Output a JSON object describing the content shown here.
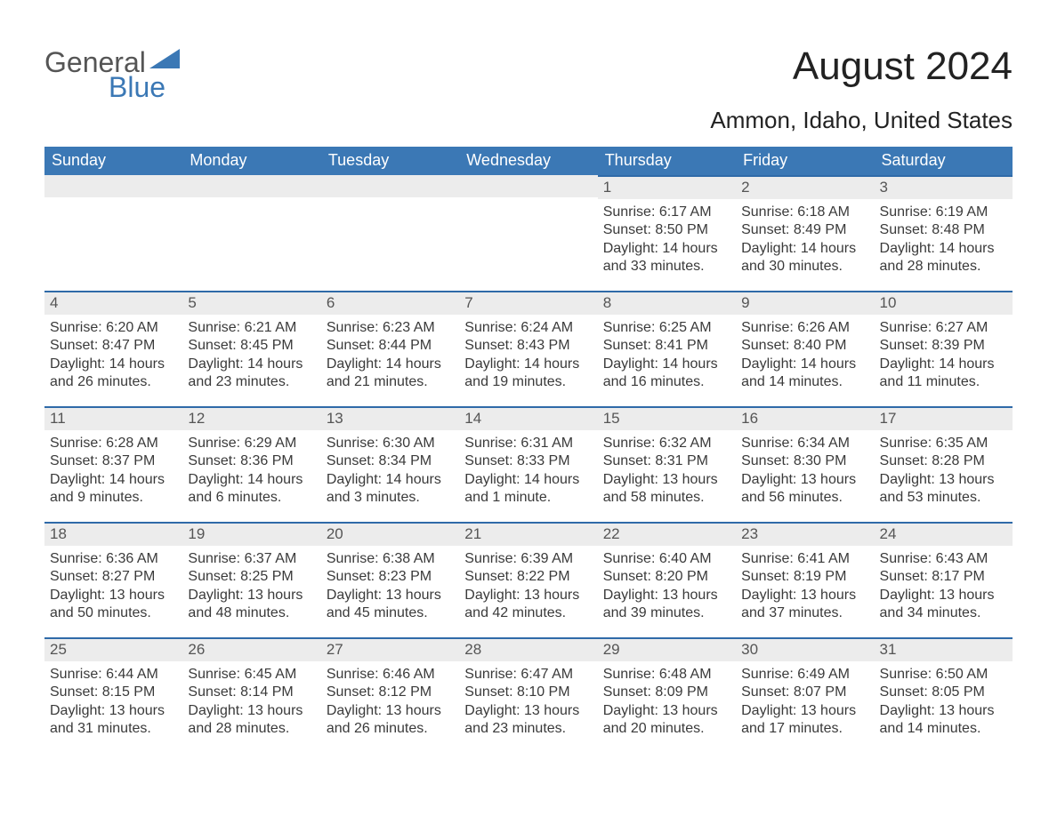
{
  "brand": {
    "line1": "General",
    "line2": "Blue"
  },
  "header": {
    "month_title": "August 2024",
    "location": "Ammon, Idaho, United States"
  },
  "colors": {
    "accent": "#3b78b5",
    "accent_line": "#2f6aa8",
    "daynum_bg": "#ececec",
    "body_text": "#3a3a3a",
    "heading_text": "#222222",
    "logo_gray": "#555555",
    "logo_blue": "#3b78b5",
    "background": "#ffffff",
    "header_text": "#ffffff"
  },
  "typography": {
    "month_title_pt": 33,
    "location_pt": 20,
    "weekday_header_pt": 14,
    "daynum_pt": 13,
    "body_pt": 12,
    "logo_pt": 24,
    "font_family": "Arial"
  },
  "calendar": {
    "type": "table",
    "weekdays": [
      "Sunday",
      "Monday",
      "Tuesday",
      "Wednesday",
      "Thursday",
      "Friday",
      "Saturday"
    ],
    "first_weekday_index": 4,
    "days": [
      {
        "n": 1,
        "sunrise": "6:17 AM",
        "sunset": "8:50 PM",
        "daylight": "14 hours and 33 minutes."
      },
      {
        "n": 2,
        "sunrise": "6:18 AM",
        "sunset": "8:49 PM",
        "daylight": "14 hours and 30 minutes."
      },
      {
        "n": 3,
        "sunrise": "6:19 AM",
        "sunset": "8:48 PM",
        "daylight": "14 hours and 28 minutes."
      },
      {
        "n": 4,
        "sunrise": "6:20 AM",
        "sunset": "8:47 PM",
        "daylight": "14 hours and 26 minutes."
      },
      {
        "n": 5,
        "sunrise": "6:21 AM",
        "sunset": "8:45 PM",
        "daylight": "14 hours and 23 minutes."
      },
      {
        "n": 6,
        "sunrise": "6:23 AM",
        "sunset": "8:44 PM",
        "daylight": "14 hours and 21 minutes."
      },
      {
        "n": 7,
        "sunrise": "6:24 AM",
        "sunset": "8:43 PM",
        "daylight": "14 hours and 19 minutes."
      },
      {
        "n": 8,
        "sunrise": "6:25 AM",
        "sunset": "8:41 PM",
        "daylight": "14 hours and 16 minutes."
      },
      {
        "n": 9,
        "sunrise": "6:26 AM",
        "sunset": "8:40 PM",
        "daylight": "14 hours and 14 minutes."
      },
      {
        "n": 10,
        "sunrise": "6:27 AM",
        "sunset": "8:39 PM",
        "daylight": "14 hours and 11 minutes."
      },
      {
        "n": 11,
        "sunrise": "6:28 AM",
        "sunset": "8:37 PM",
        "daylight": "14 hours and 9 minutes."
      },
      {
        "n": 12,
        "sunrise": "6:29 AM",
        "sunset": "8:36 PM",
        "daylight": "14 hours and 6 minutes."
      },
      {
        "n": 13,
        "sunrise": "6:30 AM",
        "sunset": "8:34 PM",
        "daylight": "14 hours and 3 minutes."
      },
      {
        "n": 14,
        "sunrise": "6:31 AM",
        "sunset": "8:33 PM",
        "daylight": "14 hours and 1 minute."
      },
      {
        "n": 15,
        "sunrise": "6:32 AM",
        "sunset": "8:31 PM",
        "daylight": "13 hours and 58 minutes."
      },
      {
        "n": 16,
        "sunrise": "6:34 AM",
        "sunset": "8:30 PM",
        "daylight": "13 hours and 56 minutes."
      },
      {
        "n": 17,
        "sunrise": "6:35 AM",
        "sunset": "8:28 PM",
        "daylight": "13 hours and 53 minutes."
      },
      {
        "n": 18,
        "sunrise": "6:36 AM",
        "sunset": "8:27 PM",
        "daylight": "13 hours and 50 minutes."
      },
      {
        "n": 19,
        "sunrise": "6:37 AM",
        "sunset": "8:25 PM",
        "daylight": "13 hours and 48 minutes."
      },
      {
        "n": 20,
        "sunrise": "6:38 AM",
        "sunset": "8:23 PM",
        "daylight": "13 hours and 45 minutes."
      },
      {
        "n": 21,
        "sunrise": "6:39 AM",
        "sunset": "8:22 PM",
        "daylight": "13 hours and 42 minutes."
      },
      {
        "n": 22,
        "sunrise": "6:40 AM",
        "sunset": "8:20 PM",
        "daylight": "13 hours and 39 minutes."
      },
      {
        "n": 23,
        "sunrise": "6:41 AM",
        "sunset": "8:19 PM",
        "daylight": "13 hours and 37 minutes."
      },
      {
        "n": 24,
        "sunrise": "6:43 AM",
        "sunset": "8:17 PM",
        "daylight": "13 hours and 34 minutes."
      },
      {
        "n": 25,
        "sunrise": "6:44 AM",
        "sunset": "8:15 PM",
        "daylight": "13 hours and 31 minutes."
      },
      {
        "n": 26,
        "sunrise": "6:45 AM",
        "sunset": "8:14 PM",
        "daylight": "13 hours and 28 minutes."
      },
      {
        "n": 27,
        "sunrise": "6:46 AM",
        "sunset": "8:12 PM",
        "daylight": "13 hours and 26 minutes."
      },
      {
        "n": 28,
        "sunrise": "6:47 AM",
        "sunset": "8:10 PM",
        "daylight": "13 hours and 23 minutes."
      },
      {
        "n": 29,
        "sunrise": "6:48 AM",
        "sunset": "8:09 PM",
        "daylight": "13 hours and 20 minutes."
      },
      {
        "n": 30,
        "sunrise": "6:49 AM",
        "sunset": "8:07 PM",
        "daylight": "13 hours and 17 minutes."
      },
      {
        "n": 31,
        "sunrise": "6:50 AM",
        "sunset": "8:05 PM",
        "daylight": "13 hours and 14 minutes."
      }
    ],
    "labels": {
      "sunrise": "Sunrise:",
      "sunset": "Sunset:",
      "daylight": "Daylight:"
    }
  }
}
